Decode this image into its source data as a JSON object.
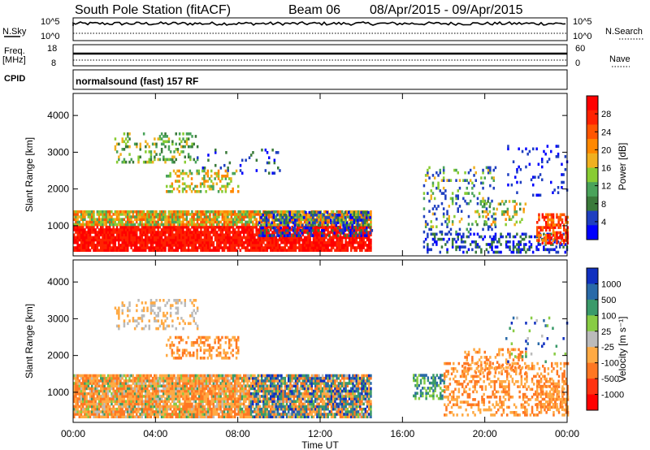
{
  "header": {
    "station": "South Pole Station (fitACF)",
    "beam": "Beam 06",
    "date_range": "08/Apr/2015 - 09/Apr/2015"
  },
  "params": {
    "nsky_label": "N.Sky",
    "nsky_ticks": [
      "10^5",
      "10^0"
    ],
    "nsearch_label": "N.Search",
    "nsearch_ticks": [
      "10^5",
      "10^0"
    ],
    "freq_label": "Freq.",
    "freq_unit": "[MHz]",
    "freq_ticks": [
      "18",
      "8"
    ],
    "nave_label": "Nave",
    "nave_ticks": [
      "60",
      "0"
    ],
    "cpid_label": "CPID",
    "cpid_text": "normalsound (fast) 157 RF"
  },
  "chart_data": [
    {
      "type": "heatmap",
      "name": "power-panel",
      "ylabel": "Slant Range [km]",
      "xlabel": "Time UT",
      "x_ticks": [
        "00:00",
        "04:00",
        "08:00",
        "12:00",
        "16:00",
        "20:00",
        "00:00"
      ],
      "xlim_hours": [
        0,
        24
      ],
      "y_ticks": [
        1000,
        2000,
        3000,
        4000
      ],
      "ylim": [
        180,
        4600
      ],
      "colorbar": {
        "label": "Power [dB]",
        "ticks": [
          "4",
          "8",
          "12",
          "16",
          "20",
          "24",
          "28"
        ],
        "colors": [
          "#0000ff",
          "#1f3fc0",
          "#3a7a3a",
          "#4aa35a",
          "#88cc33",
          "#f0b020",
          "#ff8800",
          "#ff5500",
          "#ff2200",
          "#ff0000"
        ]
      },
      "echo_regions_note": "dense scatter from ~500-1300 km 00:00-14:00; patchy echoes 16:00-24:00"
    },
    {
      "type": "heatmap",
      "name": "velocity-panel",
      "ylabel": "Slant Range [km]",
      "xlabel": "Time UT",
      "x_ticks": [
        "00:00",
        "04:00",
        "08:00",
        "12:00",
        "16:00",
        "20:00",
        "00:00"
      ],
      "xlim_hours": [
        0,
        24
      ],
      "y_ticks": [
        1000,
        2000,
        3000,
        4000
      ],
      "ylim": [
        180,
        4600
      ],
      "colorbar": {
        "label": "Velocity [m s⁻¹]",
        "ticks": [
          "1000",
          "500",
          "100",
          "25",
          "-25",
          "-100",
          "-500",
          "-1000"
        ],
        "colors": [
          "#1030c0",
          "#2a6aa8",
          "#3a9a6a",
          "#88cc44",
          "#bbbbbb",
          "#ffaa44",
          "#ff7722",
          "#ff3311",
          "#ff0000"
        ]
      }
    }
  ],
  "colors": {
    "axes": "#000000"
  }
}
